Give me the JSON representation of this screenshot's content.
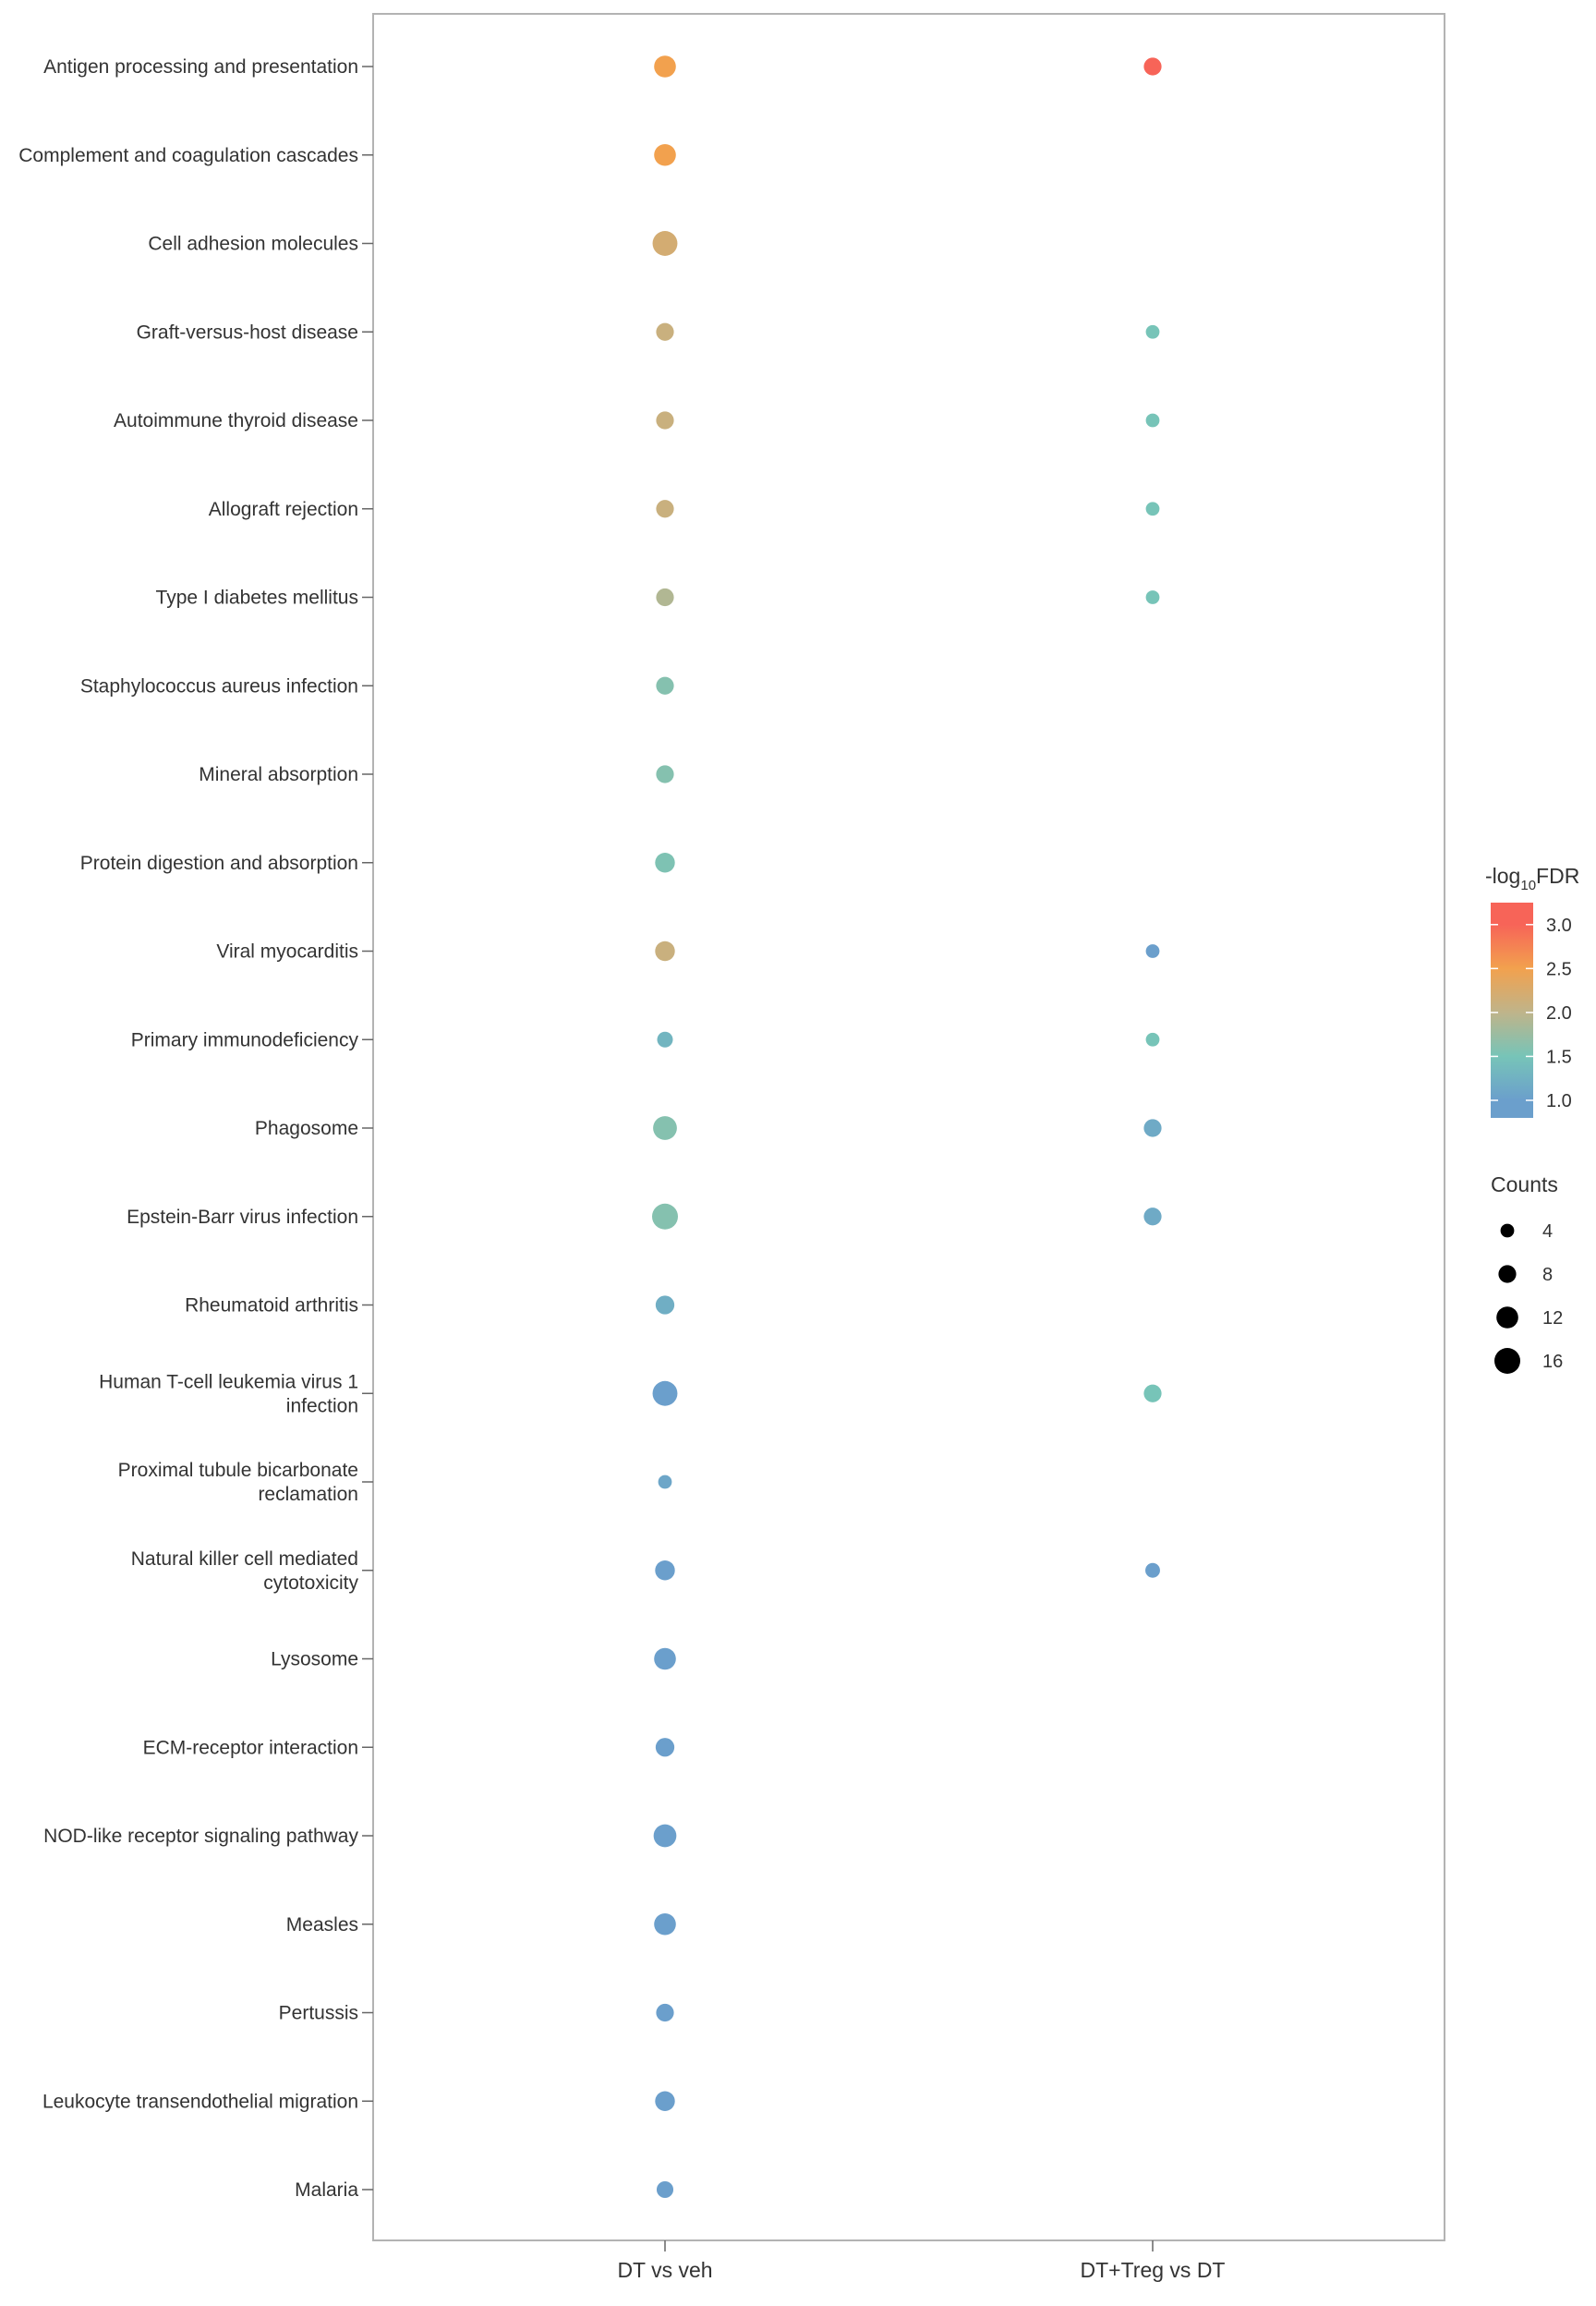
{
  "chart_data": {
    "type": "scatter",
    "subtype": "dot-plot",
    "grid": false,
    "legend_position": "right",
    "x_categories": [
      "DT vs veh",
      "DT+Treg vs DT"
    ],
    "y_categories": [
      [
        "Antigen processing and presentation"
      ],
      [
        "Complement and coagulation cascades"
      ],
      [
        "Cell adhesion molecules"
      ],
      [
        "Graft-versus-host disease"
      ],
      [
        "Autoimmune thyroid disease"
      ],
      [
        "Allograft rejection"
      ],
      [
        "Type I diabetes mellitus"
      ],
      [
        "Staphylococcus aureus infection"
      ],
      [
        "Mineral absorption"
      ],
      [
        "Protein digestion and absorption"
      ],
      [
        "Viral myocarditis"
      ],
      [
        "Primary immunodeficiency"
      ],
      [
        "Phagosome"
      ],
      [
        "Epstein-Barr virus infection"
      ],
      [
        "Rheumatoid arthritis"
      ],
      [
        "Human T-cell leukemia virus 1",
        "infection"
      ],
      [
        "Proximal tubule bicarbonate",
        "reclamation"
      ],
      [
        "Natural killer cell mediated",
        "cytotoxicity"
      ],
      [
        "Lysosome"
      ],
      [
        "ECM-receptor interaction"
      ],
      [
        "NOD-like receptor signaling pathway"
      ],
      [
        "Measles"
      ],
      [
        "Pertussis"
      ],
      [
        "Leukocyte transendothelial migration"
      ],
      [
        "Malaria"
      ]
    ],
    "points": [
      {
        "x": "DT vs veh",
        "y": 0,
        "neg_log10_fdr": 2.5,
        "counts": 12
      },
      {
        "x": "DT vs veh",
        "y": 1,
        "neg_log10_fdr": 2.5,
        "counts": 12
      },
      {
        "x": "DT vs veh",
        "y": 2,
        "neg_log10_fdr": 2.2,
        "counts": 15
      },
      {
        "x": "DT vs veh",
        "y": 3,
        "neg_log10_fdr": 2.1,
        "counts": 8
      },
      {
        "x": "DT vs veh",
        "y": 4,
        "neg_log10_fdr": 2.1,
        "counts": 8
      },
      {
        "x": "DT vs veh",
        "y": 5,
        "neg_log10_fdr": 2.1,
        "counts": 8
      },
      {
        "x": "DT vs veh",
        "y": 6,
        "neg_log10_fdr": 1.9,
        "counts": 8
      },
      {
        "x": "DT vs veh",
        "y": 7,
        "neg_log10_fdr": 1.6,
        "counts": 8
      },
      {
        "x": "DT vs veh",
        "y": 8,
        "neg_log10_fdr": 1.6,
        "counts": 8
      },
      {
        "x": "DT vs veh",
        "y": 9,
        "neg_log10_fdr": 1.55,
        "counts": 10
      },
      {
        "x": "DT vs veh",
        "y": 10,
        "neg_log10_fdr": 2.1,
        "counts": 10
      },
      {
        "x": "DT vs veh",
        "y": 11,
        "neg_log10_fdr": 1.3,
        "counts": 6
      },
      {
        "x": "DT vs veh",
        "y": 12,
        "neg_log10_fdr": 1.6,
        "counts": 14
      },
      {
        "x": "DT vs veh",
        "y": 13,
        "neg_log10_fdr": 1.6,
        "counts": 16
      },
      {
        "x": "DT vs veh",
        "y": 14,
        "neg_log10_fdr": 1.2,
        "counts": 9
      },
      {
        "x": "DT vs veh",
        "y": 15,
        "neg_log10_fdr": 0.95,
        "counts": 15
      },
      {
        "x": "DT vs veh",
        "y": 16,
        "neg_log10_fdr": 1.1,
        "counts": 4
      },
      {
        "x": "DT vs veh",
        "y": 17,
        "neg_log10_fdr": 1.0,
        "counts": 10
      },
      {
        "x": "DT vs veh",
        "y": 18,
        "neg_log10_fdr": 0.95,
        "counts": 12
      },
      {
        "x": "DT vs veh",
        "y": 19,
        "neg_log10_fdr": 0.95,
        "counts": 9
      },
      {
        "x": "DT vs veh",
        "y": 20,
        "neg_log10_fdr": 0.9,
        "counts": 13
      },
      {
        "x": "DT vs veh",
        "y": 21,
        "neg_log10_fdr": 0.9,
        "counts": 12
      },
      {
        "x": "DT vs veh",
        "y": 22,
        "neg_log10_fdr": 0.9,
        "counts": 8
      },
      {
        "x": "DT vs veh",
        "y": 23,
        "neg_log10_fdr": 0.9,
        "counts": 10
      },
      {
        "x": "DT vs veh",
        "y": 24,
        "neg_log10_fdr": 0.85,
        "counts": 7
      },
      {
        "x": "DT+Treg vs DT",
        "y": 0,
        "neg_log10_fdr": 3.2,
        "counts": 8
      },
      {
        "x": "DT+Treg vs DT",
        "y": 3,
        "neg_log10_fdr": 1.5,
        "counts": 4
      },
      {
        "x": "DT+Treg vs DT",
        "y": 4,
        "neg_log10_fdr": 1.5,
        "counts": 4
      },
      {
        "x": "DT+Treg vs DT",
        "y": 5,
        "neg_log10_fdr": 1.5,
        "counts": 4
      },
      {
        "x": "DT+Treg vs DT",
        "y": 6,
        "neg_log10_fdr": 1.5,
        "counts": 4
      },
      {
        "x": "DT+Treg vs DT",
        "y": 10,
        "neg_log10_fdr": 0.8,
        "counts": 4
      },
      {
        "x": "DT+Treg vs DT",
        "y": 11,
        "neg_log10_fdr": 1.5,
        "counts": 4
      },
      {
        "x": "DT+Treg vs DT",
        "y": 12,
        "neg_log10_fdr": 1.15,
        "counts": 8
      },
      {
        "x": "DT+Treg vs DT",
        "y": 13,
        "neg_log10_fdr": 1.15,
        "counts": 8
      },
      {
        "x": "DT+Treg vs DT",
        "y": 15,
        "neg_log10_fdr": 1.5,
        "counts": 8
      },
      {
        "x": "DT+Treg vs DT",
        "y": 17,
        "neg_log10_fdr": 0.9,
        "counts": 5
      }
    ],
    "color_legend": {
      "title_main": "-log",
      "title_sub": "10",
      "title_tail": "FDR",
      "range": [
        0.8,
        3.25
      ],
      "ticks": [
        1.0,
        1.5,
        2.0,
        2.5,
        3.0
      ],
      "tick_labels": [
        "1.0",
        "1.5",
        "2.0",
        "2.5",
        "3.0"
      ],
      "colors": [
        "#6b9fcc",
        "#77c4b8",
        "#bfb48a",
        "#f2a14e",
        "#f76458"
      ]
    },
    "size_legend": {
      "title": "Counts",
      "values": [
        4,
        8,
        12,
        16
      ],
      "labels": [
        "4",
        "8",
        "12",
        "16"
      ],
      "color": "#000000"
    },
    "panel_border_color": "#b3b3b3"
  }
}
